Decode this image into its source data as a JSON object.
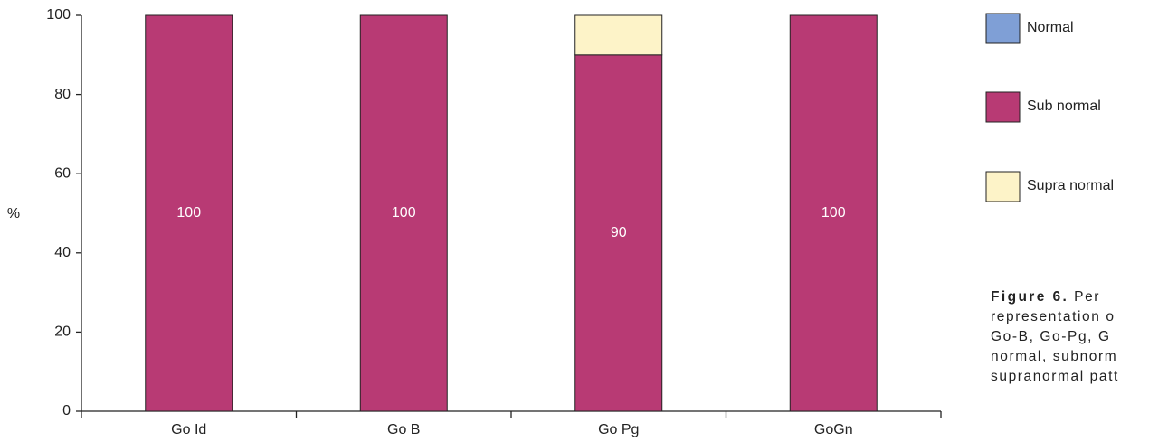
{
  "chart_data": {
    "type": "stacked_bar",
    "y_label": "%",
    "categories": [
      "Go Id",
      "Go B",
      "Go Pg",
      "GoGn"
    ],
    "series": [
      {
        "name": "Normal",
        "color": "#7f9fd6",
        "values": [
          0,
          0,
          0,
          0
        ]
      },
      {
        "name": "Sub normal",
        "color": "#b83a74",
        "values": [
          100,
          100,
          90,
          100
        ],
        "show_values": true
      },
      {
        "name": "Supra normal",
        "color": "#fdf3c8",
        "values": [
          0,
          0,
          10,
          0
        ]
      }
    ],
    "ylim": [
      0,
      100
    ],
    "yticks": [
      0,
      20,
      40,
      60,
      80,
      100
    ],
    "legend": "right",
    "caption": {
      "title": "Figure 6.",
      "lines": [
        "Per",
        "representation o",
        "Go-B, Go-Pg, G",
        "normal, subnorm",
        "supranormal patt"
      ]
    }
  }
}
